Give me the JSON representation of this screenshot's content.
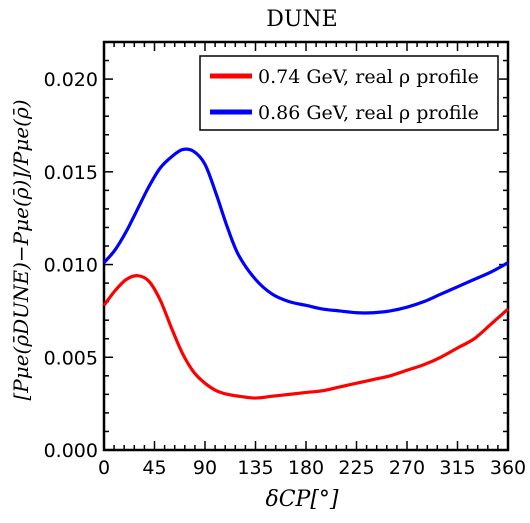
{
  "chart_data": {
    "type": "line",
    "title": "DUNE",
    "xlabel": "δCP[°]",
    "ylabel": "[Pμe(ρ̄DUNE)−Pμe(ρ̄)]/Pμe(ρ̄)",
    "xlim": [
      0,
      360
    ],
    "ylim": [
      0.0,
      0.022
    ],
    "xticks": [
      0,
      45,
      90,
      135,
      180,
      225,
      270,
      315,
      360
    ],
    "yticks": [
      0.0,
      0.005,
      0.01,
      0.015,
      0.02
    ],
    "ytick_labels": [
      "0.000",
      "0.005",
      "0.010",
      "0.015",
      "0.020"
    ],
    "grid": false,
    "legend_position": "top-right",
    "series": [
      {
        "name": "0.74 GeV, real ρ profile",
        "color": "#ff0000",
        "x": [
          0,
          10,
          20,
          30,
          40,
          50,
          60,
          70,
          80,
          90,
          100,
          110,
          120,
          135,
          150,
          165,
          180,
          195,
          210,
          225,
          240,
          255,
          270,
          285,
          300,
          315,
          330,
          345,
          360
        ],
        "y": [
          0.0078,
          0.0086,
          0.0092,
          0.0094,
          0.0091,
          0.0081,
          0.0066,
          0.0052,
          0.0042,
          0.0036,
          0.0032,
          0.003,
          0.0029,
          0.0028,
          0.0029,
          0.003,
          0.0031,
          0.0032,
          0.0034,
          0.0036,
          0.0038,
          0.004,
          0.0043,
          0.0046,
          0.005,
          0.0055,
          0.006,
          0.0068,
          0.0076
        ]
      },
      {
        "name": "0.86 GeV, real ρ profile",
        "color": "#0000ff",
        "x": [
          0,
          10,
          20,
          30,
          40,
          50,
          60,
          70,
          80,
          90,
          100,
          110,
          120,
          135,
          150,
          165,
          180,
          195,
          210,
          225,
          240,
          255,
          270,
          285,
          300,
          315,
          330,
          345,
          360
        ],
        "y": [
          0.0101,
          0.0108,
          0.0118,
          0.013,
          0.0142,
          0.0152,
          0.0158,
          0.0162,
          0.0161,
          0.0154,
          0.0138,
          0.012,
          0.0105,
          0.0092,
          0.0084,
          0.008,
          0.0078,
          0.0076,
          0.0075,
          0.0074,
          0.0074,
          0.0075,
          0.0077,
          0.008,
          0.0084,
          0.0088,
          0.0092,
          0.0096,
          0.0101
        ]
      }
    ]
  }
}
